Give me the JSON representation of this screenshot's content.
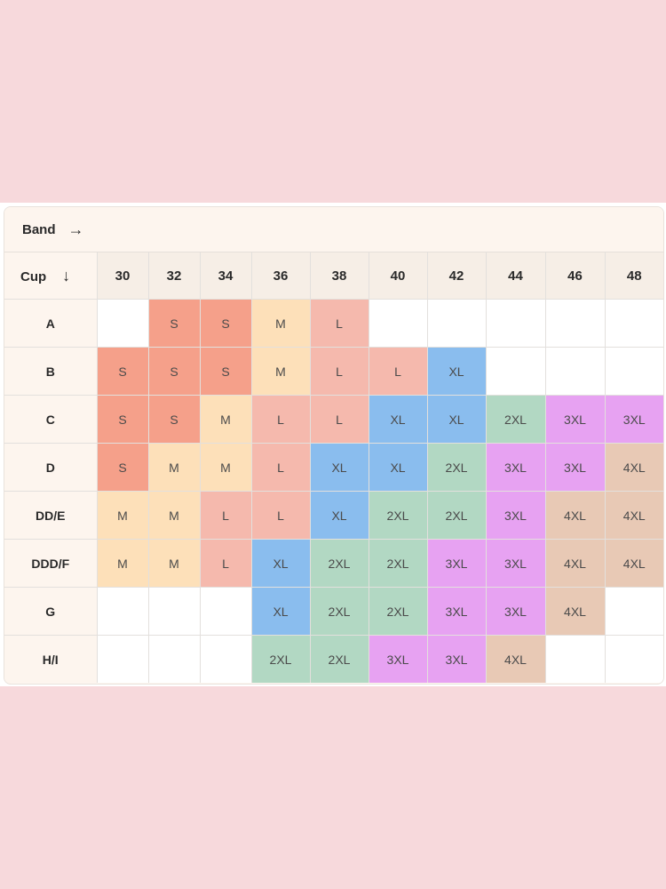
{
  "band_label": "Band",
  "band_arrow": "→",
  "cup_label": "Cup",
  "cup_arrow": "↓",
  "bands": [
    "30",
    "32",
    "34",
    "36",
    "38",
    "40",
    "42",
    "44",
    "46",
    "48"
  ],
  "colors": {
    "S": "#f5a08a",
    "M": "#fde0b9",
    "L": "#f5b9ad",
    "XL": "#8abdee",
    "2XL": "#b2d8c3",
    "3XL": "#e7a2f2",
    "4XL": "#e8c9b5"
  },
  "rows": [
    {
      "cup": "A",
      "sizes": [
        "",
        "S",
        "S",
        "M",
        "L",
        "",
        "",
        "",
        "",
        ""
      ]
    },
    {
      "cup": "B",
      "sizes": [
        "S",
        "S",
        "S",
        "M",
        "L",
        "L",
        "XL",
        "",
        "",
        ""
      ]
    },
    {
      "cup": "C",
      "sizes": [
        "S",
        "S",
        "M",
        "L",
        "L",
        "XL",
        "XL",
        "2XL",
        "3XL",
        "3XL"
      ]
    },
    {
      "cup": "D",
      "sizes": [
        "S",
        "M",
        "M",
        "L",
        "XL",
        "XL",
        "2XL",
        "3XL",
        "3XL",
        "4XL"
      ]
    },
    {
      "cup": "DD/E",
      "sizes": [
        "M",
        "M",
        "L",
        "L",
        "XL",
        "2XL",
        "2XL",
        "3XL",
        "4XL",
        "4XL"
      ]
    },
    {
      "cup": "DDD/F",
      "sizes": [
        "M",
        "M",
        "L",
        "XL",
        "2XL",
        "2XL",
        "3XL",
        "3XL",
        "4XL",
        "4XL"
      ]
    },
    {
      "cup": "G",
      "sizes": [
        "",
        "",
        "",
        "XL",
        "2XL",
        "2XL",
        "3XL",
        "3XL",
        "4XL",
        ""
      ]
    },
    {
      "cup": "H/I",
      "sizes": [
        "",
        "",
        "",
        "2XL",
        "2XL",
        "3XL",
        "3XL",
        "4XL",
        "",
        ""
      ]
    }
  ]
}
